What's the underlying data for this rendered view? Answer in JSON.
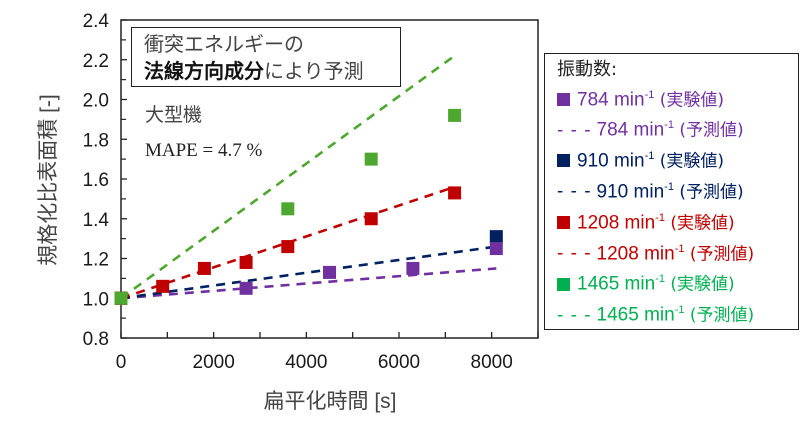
{
  "chart_data": {
    "type": "scatter",
    "title": "",
    "xlabel": "扁平化時間 [s]",
    "ylabel": "規格化比表面積 [-]",
    "xlim": [
      0,
      9000
    ],
    "ylim": [
      0.8,
      2.4
    ],
    "xticks": [
      0,
      2000,
      4000,
      6000,
      8000
    ],
    "xtick_labels": [
      "0",
      "2000",
      "4000",
      "6000",
      "8000"
    ],
    "yticks": [
      0.8,
      1.0,
      1.2,
      1.4,
      1.6,
      1.8,
      2.0,
      2.2,
      2.4
    ],
    "ytick_labels": [
      "0.8",
      "1.0",
      "1.2",
      "1.4",
      "1.6",
      "1.8",
      "2.0",
      "2.2",
      "2.4"
    ],
    "grid": false,
    "legend_position": "right-outside",
    "series": [
      {
        "name": "784 min-1",
        "color": "#7030A0",
        "experimental": {
          "x": [
            0,
            2700,
            4500,
            6300,
            8100
          ],
          "y": [
            1.0,
            1.05,
            1.13,
            1.15,
            1.25
          ]
        },
        "predicted": {
          "x": [
            0,
            8100
          ],
          "y": [
            1.0,
            1.15
          ]
        }
      },
      {
        "name": "910 min-1",
        "color": "#002060",
        "experimental": {
          "x": [
            0,
            8100
          ],
          "y": [
            1.0,
            1.31
          ]
        },
        "predicted": {
          "x": [
            0,
            8100
          ],
          "y": [
            1.0,
            1.26
          ]
        }
      },
      {
        "name": "1208 min-1",
        "color": "#C00000",
        "experimental": {
          "x": [
            0,
            900,
            1800,
            2700,
            3600,
            5400,
            7200
          ],
          "y": [
            1.0,
            1.06,
            1.15,
            1.18,
            1.26,
            1.4,
            1.53
          ]
        },
        "predicted": {
          "x": [
            0,
            7200
          ],
          "y": [
            1.0,
            1.56
          ]
        }
      },
      {
        "name": "1465 min-1",
        "color": "#4EA72E",
        "legend_color": "#00B050",
        "experimental": {
          "x": [
            0,
            3600,
            5400,
            7200
          ],
          "y": [
            1.0,
            1.45,
            1.7,
            1.92
          ]
        },
        "predicted": {
          "x": [
            0,
            7200
          ],
          "y": [
            1.0,
            2.22
          ]
        }
      }
    ]
  },
  "annotation": {
    "line1": "衝突エネルギーの",
    "line2_bold": "法線方向成分",
    "line2_rest": "により予測",
    "machine": "大型機",
    "mape": "MAPE = 4.7 %"
  },
  "legend": {
    "title": "振動数:",
    "entries": [
      {
        "marker": "■",
        "value": "784 min",
        "exp": "-1",
        "suffix": " (実験値)",
        "color": "#7030A0"
      },
      {
        "marker": "- - -",
        "value": "784 min",
        "exp": "-1",
        "suffix": " (予測値)",
        "color": "#7030A0"
      },
      {
        "marker": "■",
        "value": "910 min",
        "exp": "-1",
        "suffix": " (実験値)",
        "color": "#002060"
      },
      {
        "marker": "- - -",
        "value": "910 min",
        "exp": "-1",
        "suffix": " (予測値)",
        "color": "#002060"
      },
      {
        "marker": "■",
        "value": "1208 min",
        "exp": "-1",
        "suffix": " (実験値)",
        "color": "#C00000"
      },
      {
        "marker": "- - -",
        "value": "1208 min",
        "exp": "-1",
        "suffix": " (予測値)",
        "color": "#C00000"
      },
      {
        "marker": "■",
        "value": "1465 min",
        "exp": "-1",
        "suffix": " (実験値)",
        "color": "#00B050"
      },
      {
        "marker": "- - -",
        "value": "1465 min",
        "exp": "-1",
        "suffix": " (予測値)",
        "color": "#00B050"
      }
    ]
  }
}
